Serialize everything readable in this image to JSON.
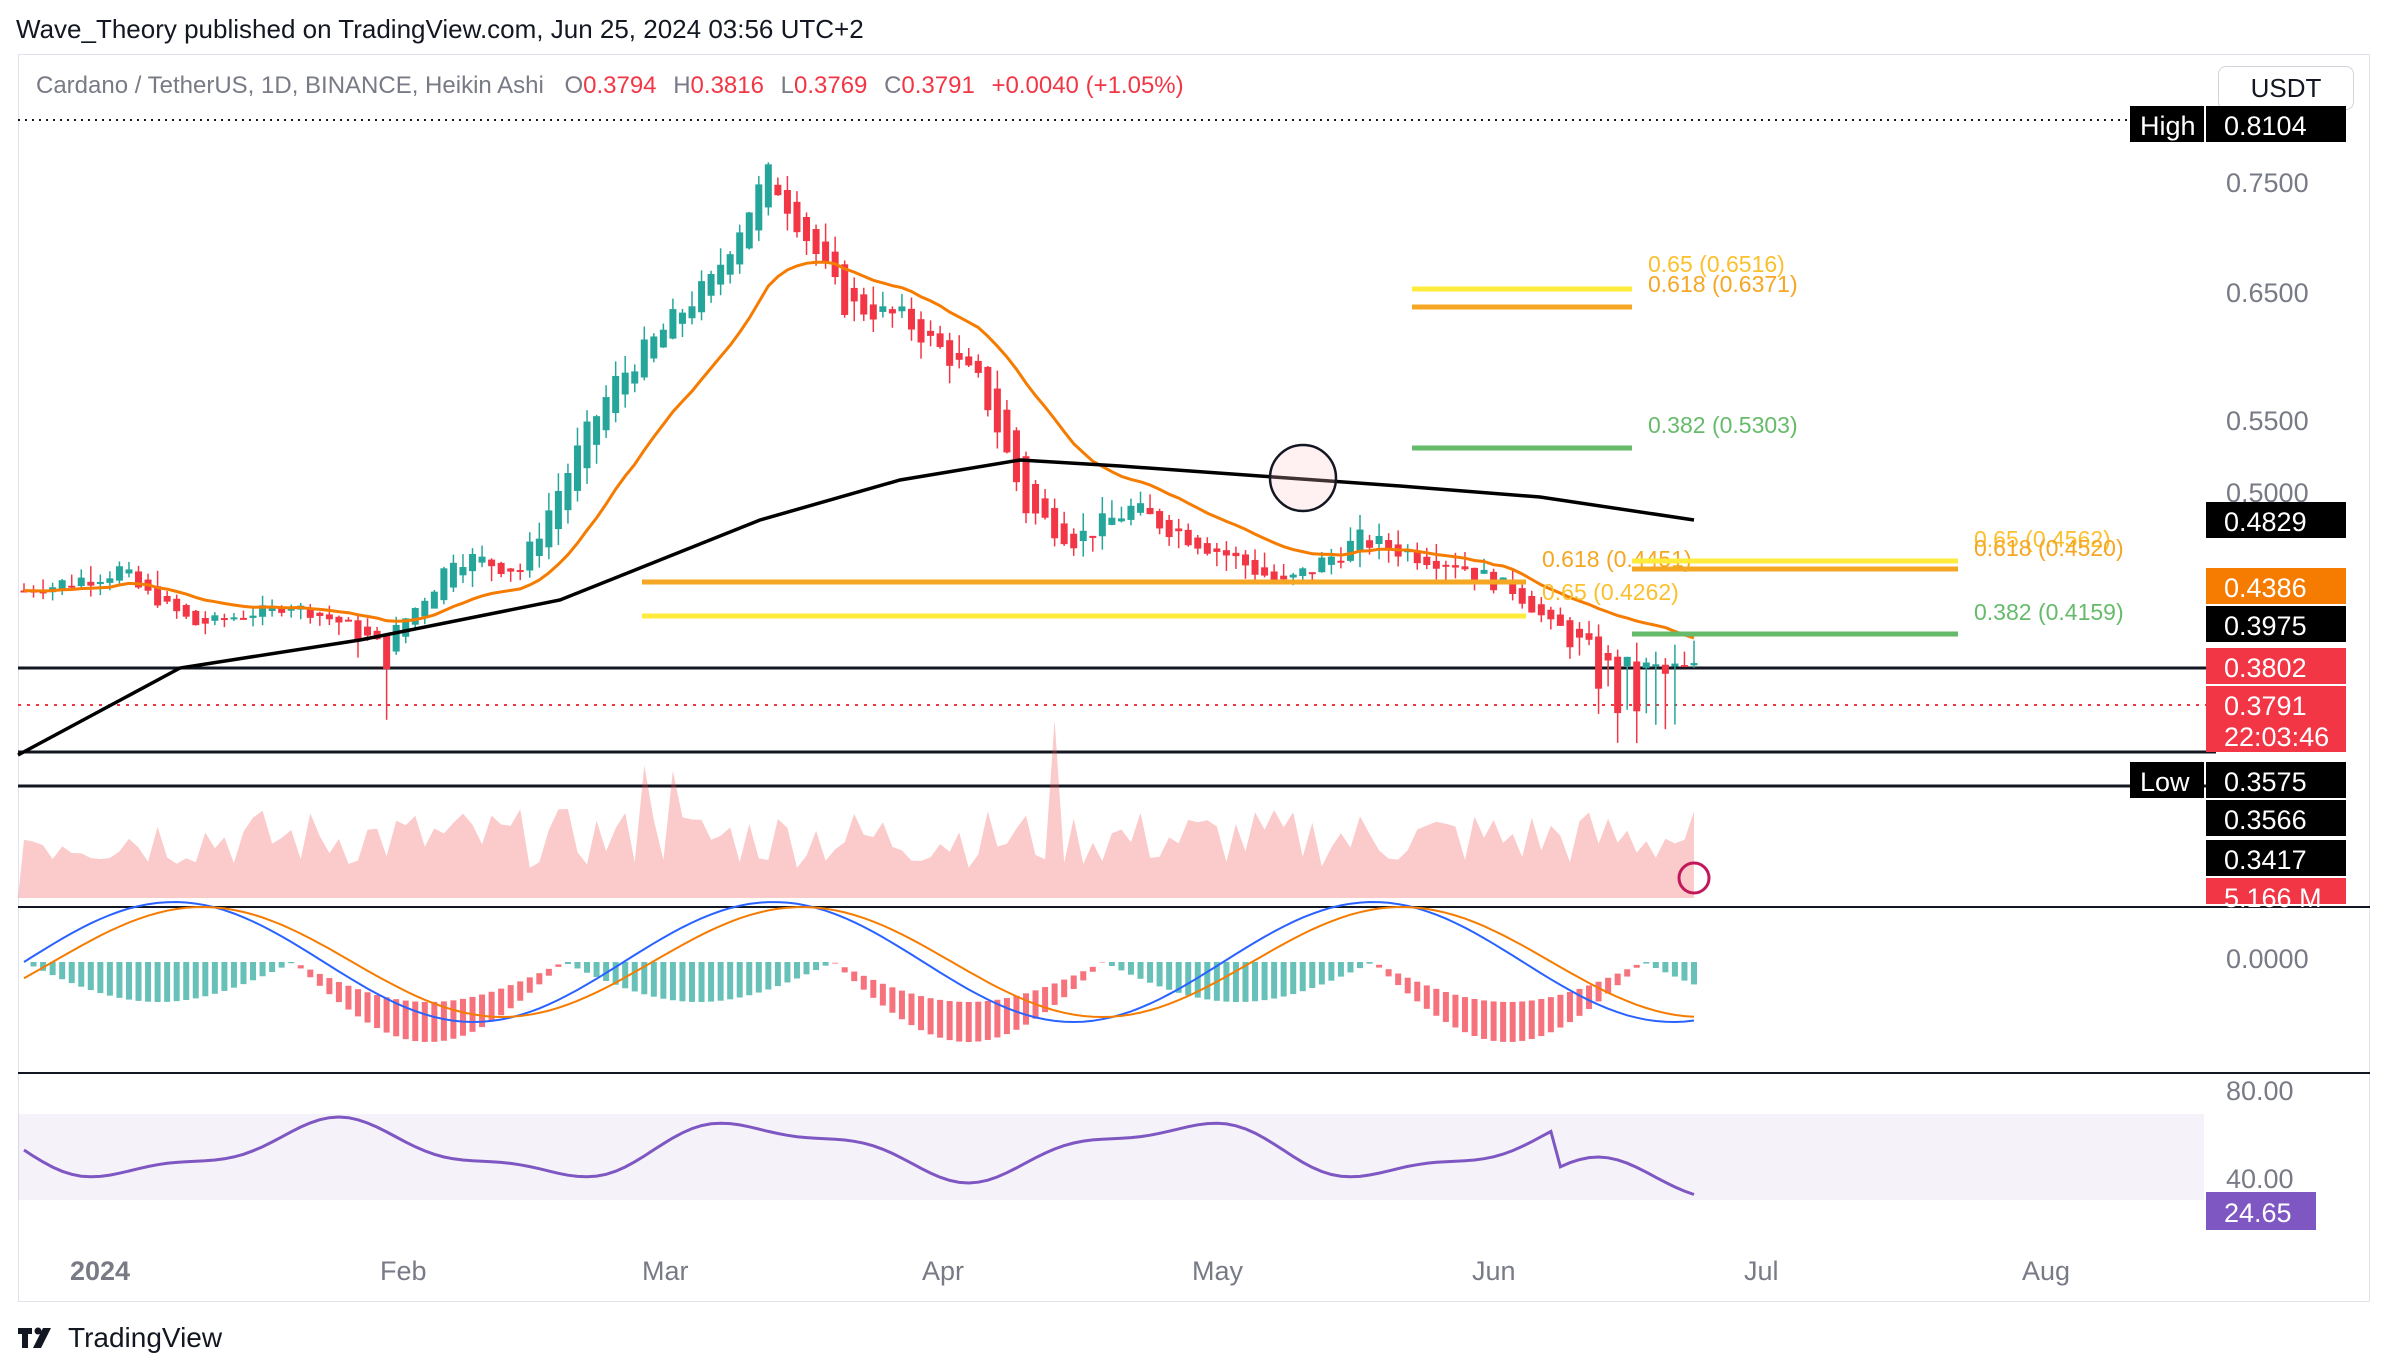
{
  "header": {
    "published_by": "Wave_Theory published on TradingView.com, Jun 25, 2024 03:56 UTC+2"
  },
  "legend": {
    "symbol": "Cardano / TetherUS, 1D, BINANCE, Heikin Ashi",
    "o_label": "O",
    "o": "0.3794",
    "h_label": "H",
    "h": "0.3816",
    "l_label": "L",
    "l": "0.3769",
    "c_label": "C",
    "c": "0.3791",
    "change": "+0.0040 (+1.05%)"
  },
  "currency_button": "USDT",
  "footer": {
    "brand": "TradingView"
  },
  "colors": {
    "up": "#26a69a",
    "down": "#f23645",
    "ema50": "#f57c00",
    "ema200": "#000000",
    "fib_gold": "#f5a623",
    "fib_yellow": "#ffeb3b",
    "fib_green": "#66bb6a",
    "rsi": "#7e57c2"
  },
  "chart_data": {
    "type": "line",
    "series": [
      {
        "type": "candlestick"
      },
      {
        "type": "line"
      },
      {
        "type": "line"
      }
    ],
    "x_ticks": [
      "2024",
      "Feb",
      "Mar",
      "Apr",
      "May",
      "Jun",
      "Jul",
      "Aug"
    ],
    "y_ticks": [
      "0.7500",
      "0.6500",
      "0.5500",
      "0.5000"
    ],
    "price_labels": [
      {
        "tag": "High",
        "value": "0.8104"
      },
      {
        "value": "0.4829"
      },
      {
        "value": "0.4386"
      },
      {
        "value": "0.3975"
      },
      {
        "value": "0.3802"
      },
      {
        "value": "0.3791",
        "countdown": "22:03:46"
      },
      {
        "tag": "Low",
        "value": "0.3575"
      },
      {
        "value": "0.3566"
      },
      {
        "value": "0.3417"
      },
      {
        "value": "5.166 M"
      }
    ],
    "fib_levels": [
      {
        "label": "0.65 (0.6516)",
        "value": 0.6516
      },
      {
        "label": "0.618 (0.6371)",
        "value": 0.6371
      },
      {
        "label": "0.382 (0.5303)",
        "value": 0.5303
      },
      {
        "label": "0.618 (0.4451)",
        "value": 0.4451
      },
      {
        "label": "0.65 (0.4262)",
        "value": 0.4262
      },
      {
        "label": "0.65 (0.4562)",
        "value": 0.4562
      },
      {
        "label": "0.618 (0.4520)",
        "value": 0.452
      },
      {
        "label": "0.382 (0.4159)",
        "value": 0.4159
      }
    ],
    "horizontal_levels": [
      0.3802,
      0.3575,
      0.3417
    ],
    "macd": {
      "zero_label": "0.0000"
    },
    "rsi": {
      "ticks": [
        "80.00",
        "40.00"
      ],
      "value": "24.65"
    }
  }
}
